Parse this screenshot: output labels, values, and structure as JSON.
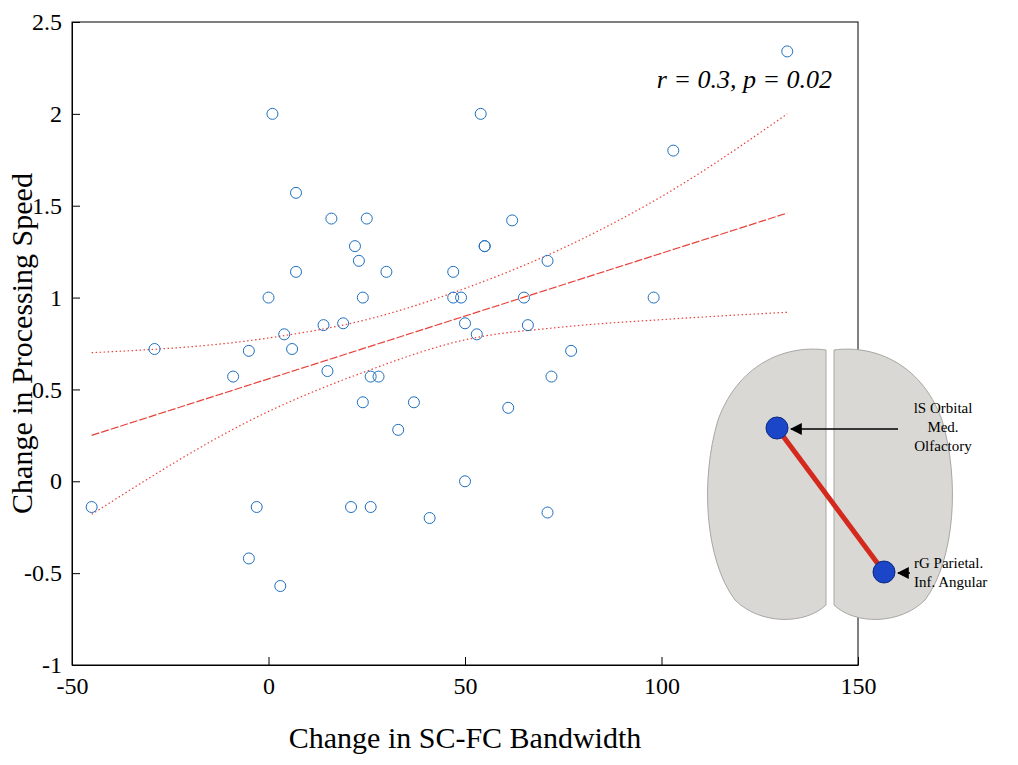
{
  "chart_data": {
    "type": "scatter",
    "x_label": "Change in SC-FC Bandwidth",
    "y_label": "Change in Processing Speed",
    "annotation": "r = 0.3, p = 0.02",
    "color": "#1f6fbf",
    "marker": "circle",
    "xlim": [
      -50,
      150
    ],
    "xticks": [
      -50,
      0,
      50,
      100,
      150
    ],
    "ylim": [
      -1,
      2.5
    ],
    "yticks": [
      -1,
      -0.5,
      0,
      0.5,
      1,
      1.5,
      2,
      2.5
    ],
    "x": [
      -45,
      -29,
      -9,
      -5,
      -5,
      -3,
      0,
      1,
      3,
      4,
      6,
      7,
      7,
      14,
      15,
      16,
      19,
      21,
      22,
      23,
      24,
      24,
      25,
      26,
      26,
      28,
      30,
      33,
      37,
      41,
      47,
      47,
      49,
      50,
      50,
      53,
      54,
      55,
      55,
      61,
      62,
      65,
      66,
      71,
      71,
      72,
      77,
      98,
      103,
      132
    ],
    "values": [
      -0.14,
      0.72,
      0.57,
      0.71,
      -0.42,
      -0.14,
      1.0,
      2.0,
      -0.57,
      0.8,
      0.72,
      1.57,
      1.14,
      0.85,
      0.6,
      1.43,
      0.86,
      -0.14,
      1.28,
      1.2,
      0.43,
      1.0,
      1.43,
      0.57,
      -0.14,
      0.57,
      1.14,
      0.28,
      0.43,
      -0.2,
      1.0,
      1.14,
      1.0,
      0.0,
      0.86,
      0.8,
      2.0,
      1.28,
      1.28,
      0.4,
      1.42,
      1.0,
      0.85,
      1.2,
      -0.17,
      0.57,
      0.71,
      1.0,
      1.8,
      2.34
    ],
    "regression": {
      "x": [
        -45,
        132
      ],
      "y": [
        0.25,
        1.46
      ]
    },
    "confidence_upper": {
      "x": [
        -45,
        0,
        25,
        50,
        75,
        100,
        132
      ],
      "y": [
        0.7,
        0.78,
        0.88,
        1.05,
        1.27,
        1.55,
        2.0
      ]
    },
    "confidence_lower": {
      "x": [
        -45,
        0,
        25,
        50,
        75,
        100,
        132
      ],
      "y": [
        -0.18,
        0.38,
        0.6,
        0.77,
        0.84,
        0.88,
        0.92
      ]
    },
    "brain_labels": [
      [
        "lS Orbital",
        "Med.",
        "Olfactory"
      ],
      [
        "rG Parietal.",
        "Inf. Angular"
      ]
    ]
  }
}
